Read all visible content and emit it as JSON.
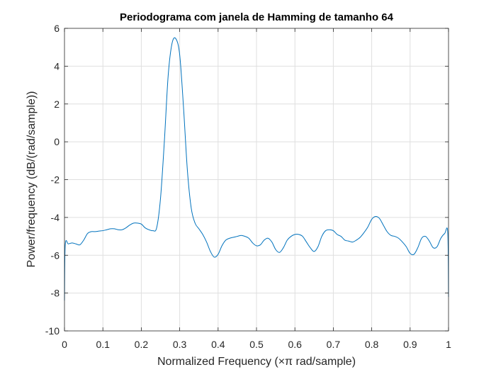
{
  "chart_data": {
    "type": "line",
    "title": "Periodograma com janela de Hamming de tamanho 64",
    "xlabel": "Normalized Frequency  (×π rad/sample)",
    "ylabel": "Power/frequency (dB/(rad/sample))",
    "xlim": [
      0,
      1
    ],
    "ylim": [
      -10,
      6
    ],
    "xticks": [
      0,
      0.1,
      0.2,
      0.3,
      0.4,
      0.5,
      0.6,
      0.7,
      0.8,
      0.9,
      1
    ],
    "xtick_labels": [
      "0",
      "0.1",
      "0.2",
      "0.3",
      "0.4",
      "0.5",
      "0.6",
      "0.7",
      "0.8",
      "0.9",
      "1"
    ],
    "yticks": [
      -10,
      -8,
      -6,
      -4,
      -2,
      0,
      2,
      4,
      6
    ],
    "ytick_labels": [
      "-10",
      "-8",
      "-6",
      "-4",
      "-2",
      "0",
      "2",
      "4",
      "6"
    ],
    "grid": true,
    "line_color": "#0072BD",
    "series": [
      {
        "x": [
          0,
          0.002,
          0.01,
          0.02,
          0.03,
          0.04,
          0.05,
          0.06,
          0.07,
          0.08,
          0.09,
          0.1,
          0.11,
          0.12,
          0.13,
          0.14,
          0.15,
          0.16,
          0.17,
          0.18,
          0.19,
          0.2,
          0.21,
          0.22,
          0.23,
          0.24,
          0.25,
          0.26,
          0.27,
          0.28,
          0.29,
          0.3,
          0.31,
          0.32,
          0.33,
          0.34,
          0.35,
          0.36,
          0.37,
          0.38,
          0.39,
          0.4,
          0.41,
          0.42,
          0.43,
          0.44,
          0.45,
          0.46,
          0.47,
          0.48,
          0.49,
          0.5,
          0.51,
          0.52,
          0.53,
          0.54,
          0.55,
          0.56,
          0.57,
          0.58,
          0.59,
          0.6,
          0.61,
          0.62,
          0.63,
          0.64,
          0.65,
          0.66,
          0.67,
          0.68,
          0.69,
          0.7,
          0.71,
          0.72,
          0.73,
          0.74,
          0.75,
          0.76,
          0.77,
          0.78,
          0.79,
          0.8,
          0.81,
          0.82,
          0.83,
          0.84,
          0.85,
          0.86,
          0.87,
          0.88,
          0.89,
          0.9,
          0.91,
          0.92,
          0.93,
          0.94,
          0.95,
          0.96,
          0.97,
          0.98,
          0.99,
          0.998,
          1
        ],
        "y": [
          -8.4,
          -5.45,
          -5.4,
          -5.35,
          -5.4,
          -5.45,
          -5.2,
          -4.85,
          -4.75,
          -4.75,
          -4.72,
          -4.7,
          -4.65,
          -4.6,
          -4.6,
          -4.65,
          -4.65,
          -4.55,
          -4.4,
          -4.3,
          -4.3,
          -4.35,
          -4.55,
          -4.65,
          -4.7,
          -4.55,
          -3.0,
          0.0,
          3.5,
          5.2,
          5.45,
          4.6,
          1.8,
          -1.5,
          -3.5,
          -4.3,
          -4.6,
          -4.9,
          -5.3,
          -5.8,
          -6.1,
          -5.95,
          -5.5,
          -5.2,
          -5.1,
          -5.05,
          -5.0,
          -4.95,
          -5.0,
          -5.1,
          -5.35,
          -5.5,
          -5.45,
          -5.2,
          -5.1,
          -5.3,
          -5.7,
          -5.85,
          -5.6,
          -5.2,
          -5.0,
          -4.9,
          -4.9,
          -5.0,
          -5.3,
          -5.6,
          -5.8,
          -5.55,
          -5.0,
          -4.7,
          -4.65,
          -4.7,
          -4.9,
          -5.0,
          -5.2,
          -5.25,
          -5.3,
          -5.2,
          -5.05,
          -4.8,
          -4.5,
          -4.1,
          -3.95,
          -4.05,
          -4.4,
          -4.75,
          -4.95,
          -5.0,
          -5.1,
          -5.3,
          -5.55,
          -5.9,
          -5.95,
          -5.6,
          -5.1,
          -5.0,
          -5.25,
          -5.6,
          -5.55,
          -5.1,
          -4.85,
          -4.8,
          -8.2
        ]
      }
    ]
  }
}
